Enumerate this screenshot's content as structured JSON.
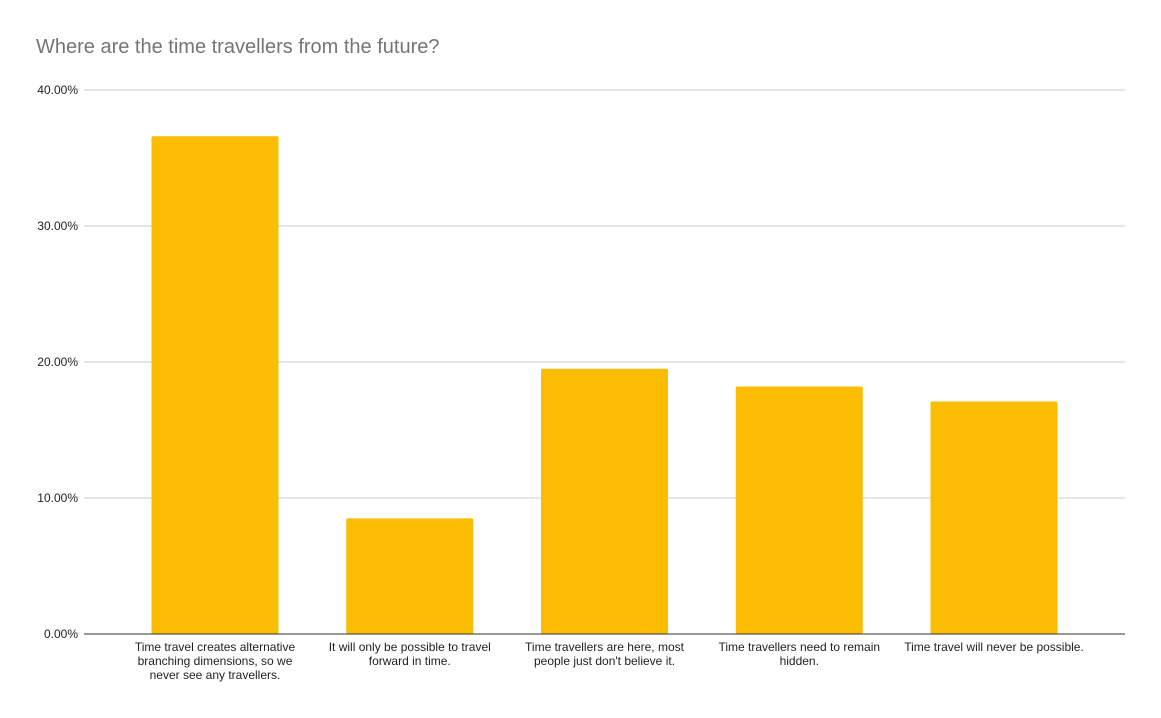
{
  "chart_data": {
    "type": "bar",
    "title": "Where are the time travellers from the future?",
    "xlabel": "",
    "ylabel": "",
    "categories": [
      "Time travel creates alternative branching dimensions, so we never see any travellers.",
      "It will only be possible to travel forward in time.",
      "Time travellers are here, most people just don't believe it.",
      "Time travellers need to remain hidden.",
      "Time travel will never be possible."
    ],
    "category_lines": [
      [
        "Time travel creates alternative",
        "branching dimensions, so we",
        "never see any travellers."
      ],
      [
        "It will only be possible to travel",
        "forward in time."
      ],
      [
        "Time travellers are here, most",
        "people just don't believe it."
      ],
      [
        "Time travellers need to remain",
        "hidden."
      ],
      [
        "Time travel will never be possible."
      ]
    ],
    "values": [
      36.6,
      8.5,
      19.5,
      18.2,
      17.1
    ],
    "ylim": [
      0,
      40
    ],
    "yticks": [
      0,
      10,
      20,
      30,
      40
    ],
    "ytick_labels": [
      "0.00%",
      "10.00%",
      "20.00%",
      "30.00%",
      "40.00%"
    ],
    "grid": true,
    "legend": "none",
    "colors": {
      "bar": "#fabd02",
      "grid": "#cccccc",
      "axis": "#333333"
    }
  }
}
